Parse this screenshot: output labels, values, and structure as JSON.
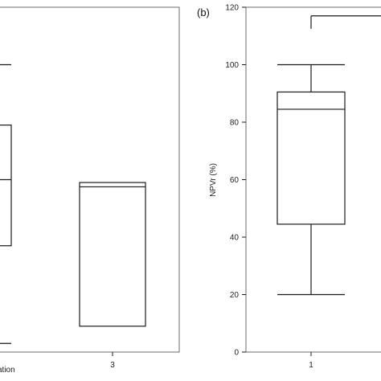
{
  "chart_data": [
    {
      "type": "box",
      "panel_label": "",
      "xlabel": "ation",
      "ylabel": "",
      "ylim": [
        0,
        120
      ],
      "categories": [
        "",
        "3"
      ],
      "boxes": [
        {
          "category": "",
          "whisker_low": 3,
          "q1": 37,
          "median": 60,
          "q3": 79,
          "whisker_high": 100
        },
        {
          "category": "3",
          "whisker_low": 9,
          "q1": 9,
          "median": 57.5,
          "q3": 59,
          "whisker_high": 59
        }
      ]
    },
    {
      "type": "box",
      "panel_label": "(b)",
      "xlabel": "",
      "ylabel": "NPVr (%)",
      "ylim": [
        0,
        120
      ],
      "yticks": [
        0,
        20,
        40,
        60,
        80,
        100,
        120
      ],
      "categories": [
        "1"
      ],
      "boxes": [
        {
          "category": "1",
          "whisker_low": 20,
          "q1": 44.5,
          "median": 84.5,
          "q3": 90.5,
          "whisker_high": 100
        }
      ],
      "bracket": {
        "y": 117
      }
    }
  ]
}
